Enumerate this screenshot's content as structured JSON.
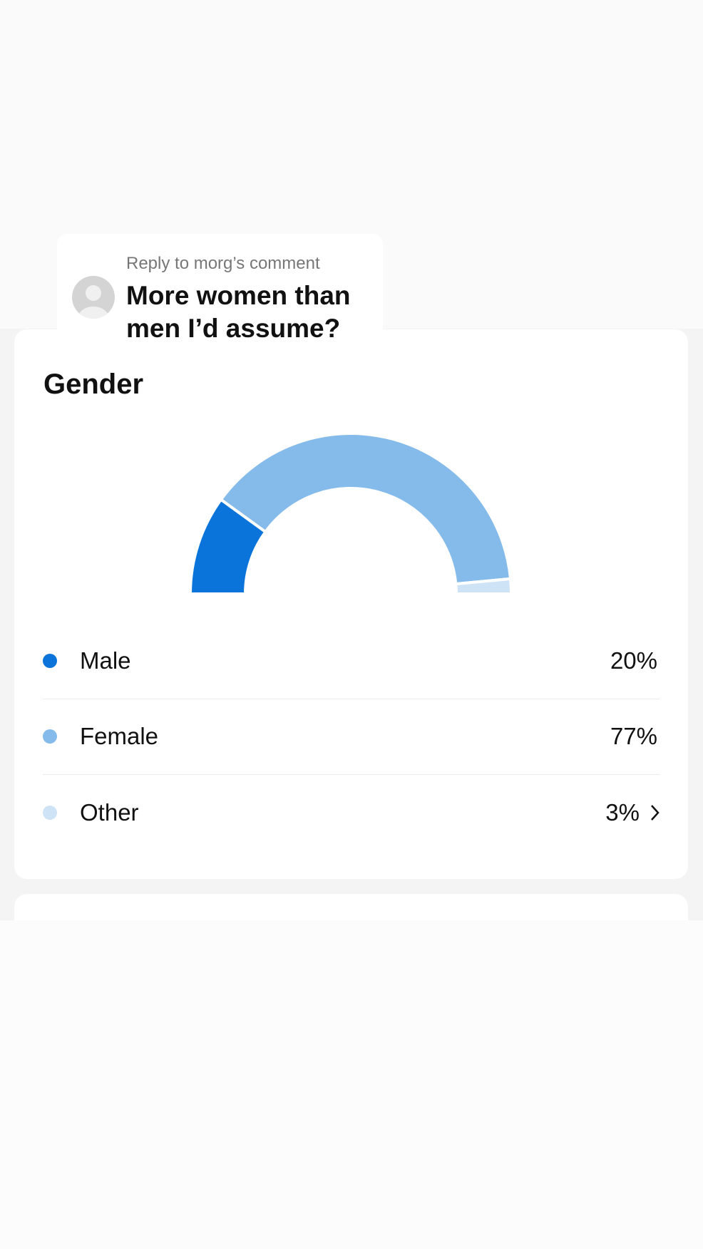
{
  "reply": {
    "label": "Reply to morg’s comment",
    "text": "More women than men I’d assume?"
  },
  "chart_data": {
    "type": "half-donut",
    "title": "Gender",
    "categories": [
      "Male",
      "Female",
      "Other"
    ],
    "values": [
      20,
      77,
      3
    ],
    "value_labels": [
      "20%",
      "77%",
      "3%"
    ],
    "colors": [
      "#0a74da",
      "#85bbea",
      "#cfe3f7"
    ]
  }
}
